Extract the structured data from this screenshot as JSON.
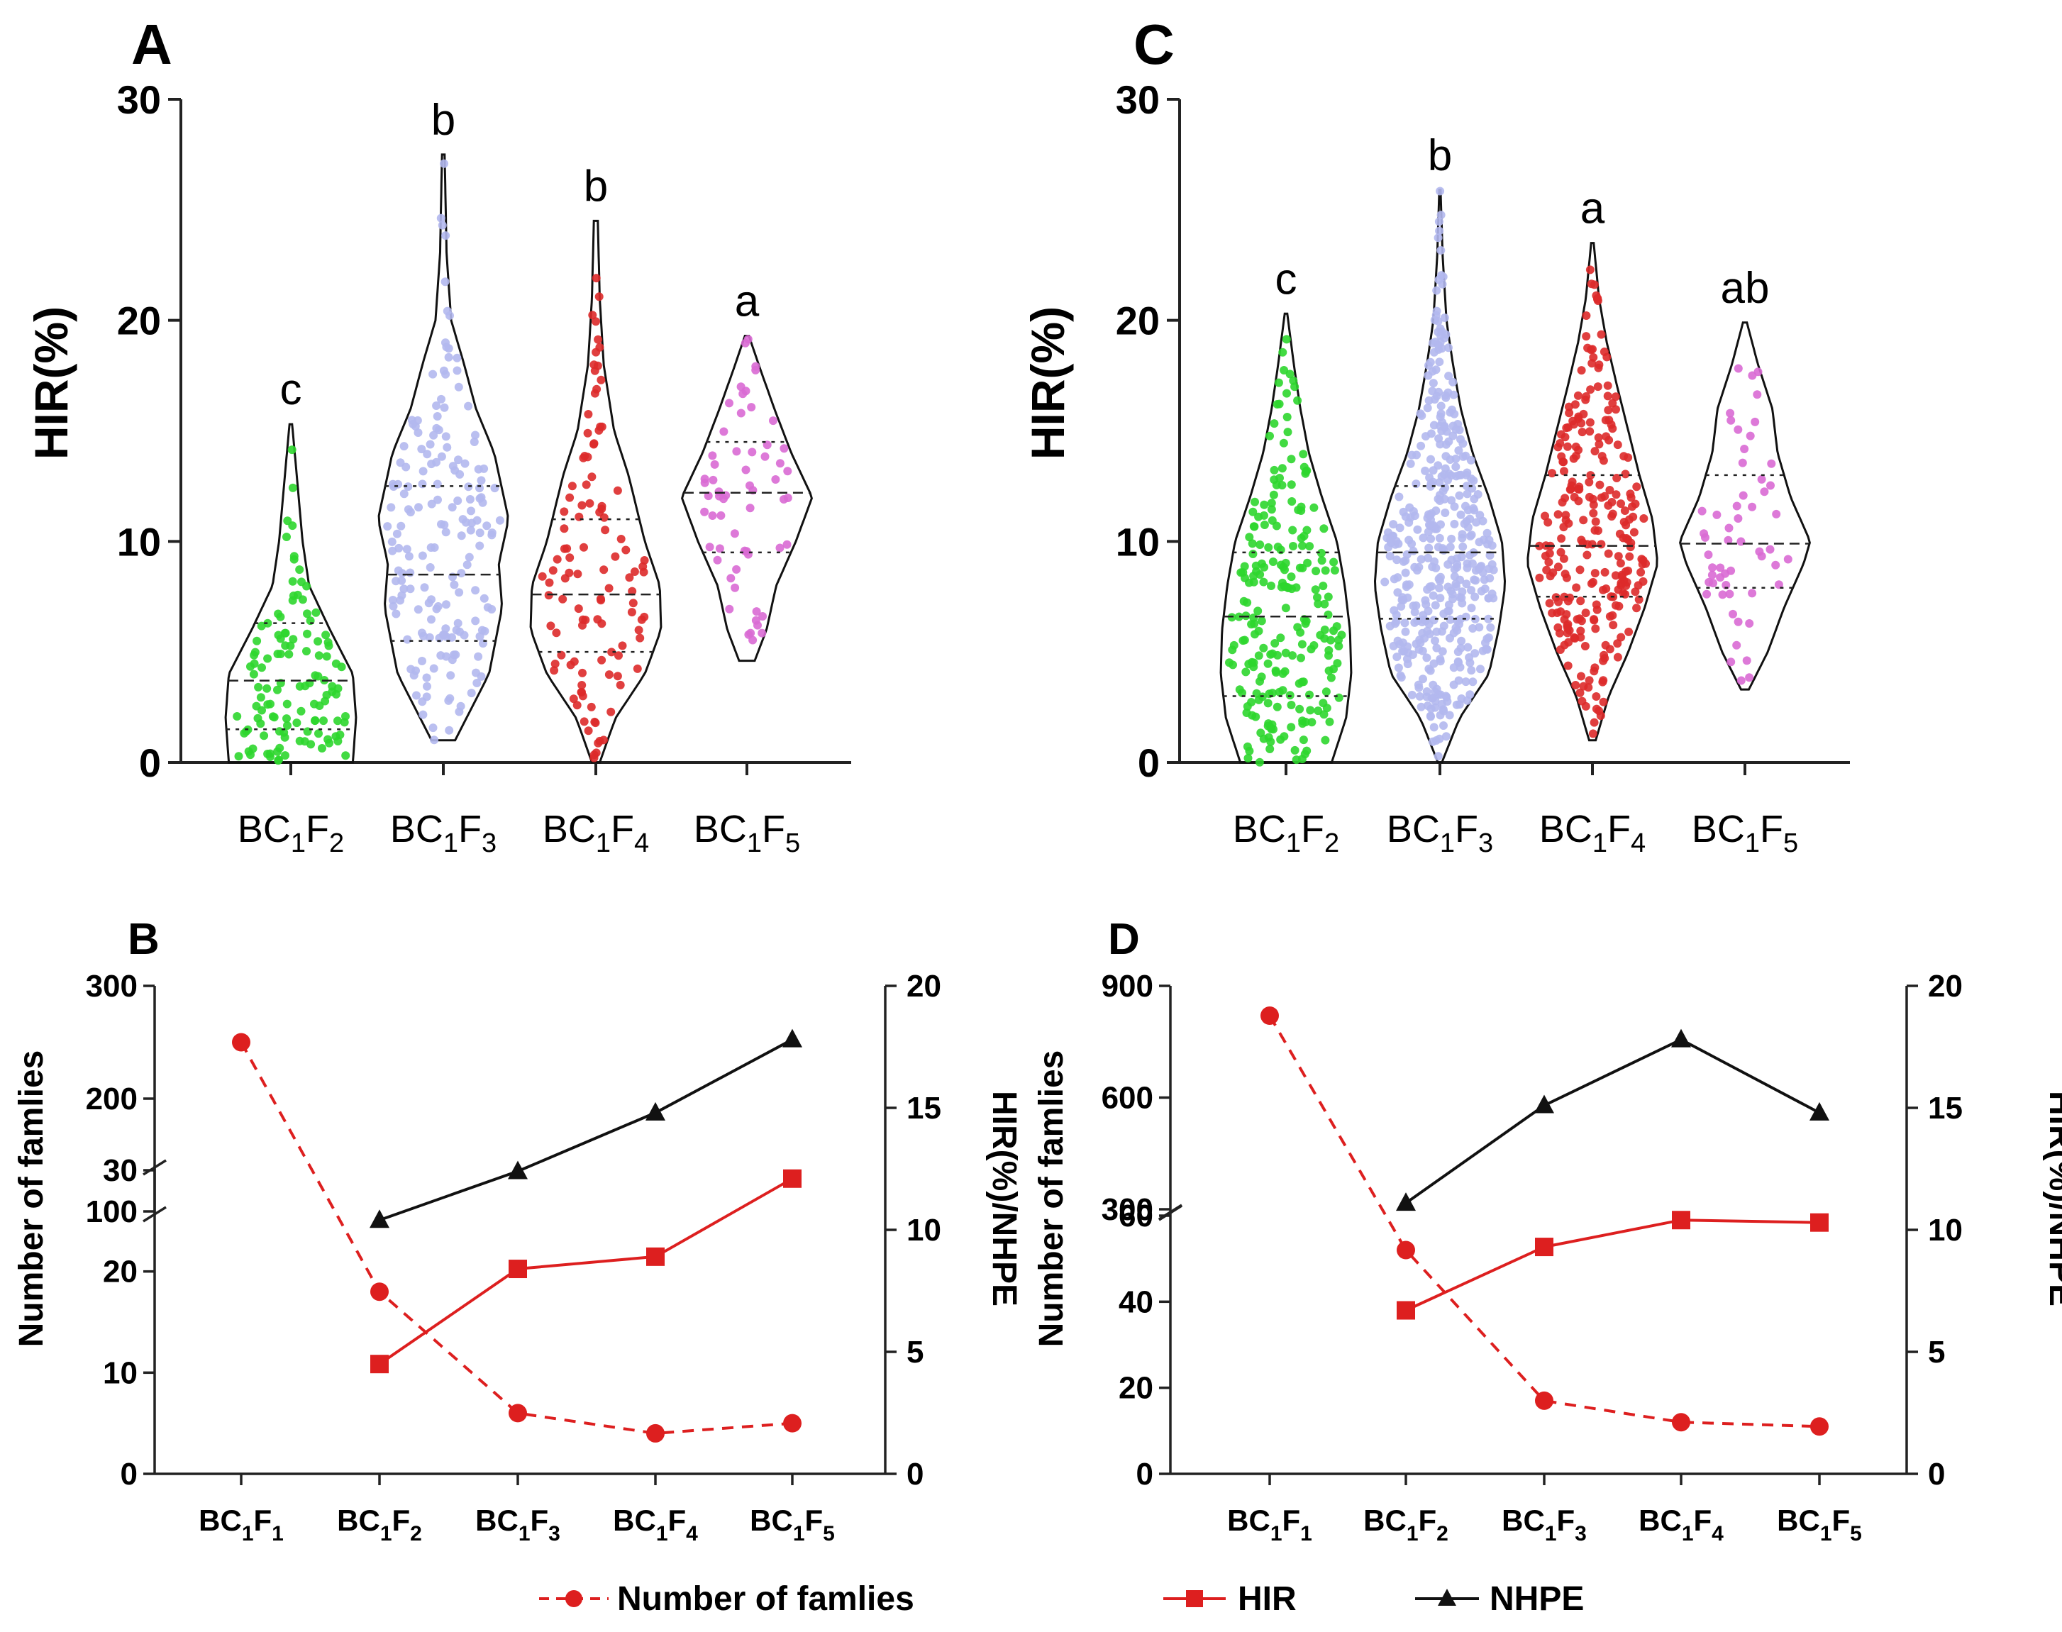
{
  "chart_data": [
    {
      "panel": "A",
      "type": "violin",
      "ylabel": "HIR(%)",
      "ylim": [
        0,
        30
      ],
      "yticks": [
        "0",
        "10",
        "20",
        "30"
      ],
      "categories": [
        {
          "base": "BC",
          "sub1": "1",
          "mid": "F",
          "sub2": "2"
        },
        {
          "base": "BC",
          "sub1": "1",
          "mid": "F",
          "sub2": "3"
        },
        {
          "base": "BC",
          "sub1": "1",
          "mid": "F",
          "sub2": "4"
        },
        {
          "base": "BC",
          "sub1": "1",
          "mid": "F",
          "sub2": "5"
        }
      ],
      "groups": [
        {
          "color": "#2ed62e",
          "min": 0,
          "max": 15.3,
          "median": 3.7,
          "q1": 1.5,
          "q3": 6.3,
          "n": 120,
          "letter": "c",
          "density": [
            [
              0,
              0.95
            ],
            [
              2,
              1.0
            ],
            [
              4,
              0.95
            ],
            [
              6,
              0.6
            ],
            [
              8,
              0.28
            ],
            [
              10,
              0.18
            ],
            [
              12,
              0.12
            ],
            [
              14,
              0.06
            ],
            [
              15.3,
              0.02
            ]
          ]
        },
        {
          "color": "#b3b8ee",
          "min": 1,
          "max": 27.5,
          "median": 8.5,
          "q1": 5.5,
          "q3": 12.5,
          "n": 180,
          "letter": "b",
          "density": [
            [
              1,
              0.18
            ],
            [
              4,
              0.7
            ],
            [
              7,
              0.9
            ],
            [
              9,
              0.85
            ],
            [
              11,
              1.0
            ],
            [
              14,
              0.78
            ],
            [
              16,
              0.5
            ],
            [
              18,
              0.32
            ],
            [
              20,
              0.12
            ],
            [
              23,
              0.05
            ],
            [
              27.5,
              0.02
            ]
          ]
        },
        {
          "color": "#dd2a2a",
          "min": 0,
          "max": 24.5,
          "median": 7.6,
          "q1": 5,
          "q3": 11,
          "n": 110,
          "letter": "b",
          "density": [
            [
              0,
              0.06
            ],
            [
              2,
              0.3
            ],
            [
              4,
              0.75
            ],
            [
              6,
              1.0
            ],
            [
              8,
              0.98
            ],
            [
              10,
              0.75
            ],
            [
              13,
              0.5
            ],
            [
              15,
              0.28
            ],
            [
              18,
              0.12
            ],
            [
              21,
              0.06
            ],
            [
              24.5,
              0.03
            ]
          ]
        },
        {
          "color": "#d96ad4",
          "min": 4.6,
          "max": 19.3,
          "median": 12.2,
          "q1": 9.5,
          "q3": 14.5,
          "n": 60,
          "letter": "a",
          "density": [
            [
              4.6,
              0.12
            ],
            [
              6,
              0.3
            ],
            [
              8,
              0.45
            ],
            [
              10,
              0.75
            ],
            [
              12,
              1.0
            ],
            [
              14,
              0.68
            ],
            [
              16,
              0.42
            ],
            [
              18,
              0.18
            ],
            [
              19.3,
              0.03
            ]
          ]
        }
      ]
    },
    {
      "panel": "C",
      "type": "violin",
      "ylabel": "HIR(%)",
      "ylim": [
        0,
        30
      ],
      "yticks": [
        "0",
        "10",
        "20",
        "30"
      ],
      "categories": [
        {
          "base": "BC",
          "sub1": "1",
          "mid": "F",
          "sub2": "2"
        },
        {
          "base": "BC",
          "sub1": "1",
          "mid": "F",
          "sub2": "3"
        },
        {
          "base": "BC",
          "sub1": "1",
          "mid": "F",
          "sub2": "4"
        },
        {
          "base": "BC",
          "sub1": "1",
          "mid": "F",
          "sub2": "5"
        }
      ],
      "groups": [
        {
          "color": "#2ed62e",
          "min": 0,
          "max": 20.3,
          "median": 6.6,
          "q1": 3,
          "q3": 9.5,
          "n": 230,
          "letter": "c",
          "density": [
            [
              0,
              0.7
            ],
            [
              2,
              0.92
            ],
            [
              4,
              1.0
            ],
            [
              6,
              0.98
            ],
            [
              8,
              0.9
            ],
            [
              10,
              0.78
            ],
            [
              12,
              0.55
            ],
            [
              14,
              0.35
            ],
            [
              16,
              0.22
            ],
            [
              18,
              0.12
            ],
            [
              20.3,
              0.02
            ]
          ]
        },
        {
          "color": "#b3b8ee",
          "min": 0,
          "max": 25.9,
          "median": 9.5,
          "q1": 6.5,
          "q3": 12.5,
          "n": 420,
          "letter": "b",
          "density": [
            [
              0,
              0.03
            ],
            [
              2,
              0.3
            ],
            [
              4,
              0.75
            ],
            [
              6,
              0.9
            ],
            [
              8,
              1.0
            ],
            [
              10,
              0.95
            ],
            [
              12,
              0.75
            ],
            [
              14,
              0.5
            ],
            [
              16,
              0.32
            ],
            [
              18,
              0.2
            ],
            [
              20,
              0.1
            ],
            [
              23,
              0.04
            ],
            [
              25.9,
              0.01
            ]
          ]
        },
        {
          "color": "#dd2a2a",
          "min": 1,
          "max": 23.5,
          "median": 9.8,
          "q1": 7.5,
          "q3": 13,
          "n": 260,
          "letter": "a",
          "density": [
            [
              1,
              0.05
            ],
            [
              3,
              0.25
            ],
            [
              5,
              0.55
            ],
            [
              7,
              0.8
            ],
            [
              9,
              1.0
            ],
            [
              11,
              0.92
            ],
            [
              13,
              0.72
            ],
            [
              15,
              0.55
            ],
            [
              17,
              0.38
            ],
            [
              19,
              0.22
            ],
            [
              21,
              0.1
            ],
            [
              23.5,
              0.02
            ]
          ]
        },
        {
          "color": "#d96ad4",
          "min": 3.3,
          "max": 19.9,
          "median": 9.9,
          "q1": 7.9,
          "q3": 13,
          "n": 55,
          "letter": "ab",
          "density": [
            [
              3.3,
              0.06
            ],
            [
              5,
              0.35
            ],
            [
              7,
              0.6
            ],
            [
              9,
              0.9
            ],
            [
              10,
              1.0
            ],
            [
              12,
              0.7
            ],
            [
              14,
              0.5
            ],
            [
              16,
              0.42
            ],
            [
              18,
              0.2
            ],
            [
              19.9,
              0.03
            ]
          ]
        }
      ]
    },
    {
      "panel": "B",
      "type": "line",
      "x": [
        "BC1F1",
        "BC1F2",
        "BC1F3",
        "BC1F4",
        "BC1F5"
      ],
      "xlabels": [
        {
          "base": "BC",
          "sub1": "1",
          "mid": "F",
          "sub2": "1"
        },
        {
          "base": "BC",
          "sub1": "1",
          "mid": "F",
          "sub2": "2"
        },
        {
          "base": "BC",
          "sub1": "1",
          "mid": "F",
          "sub2": "3"
        },
        {
          "base": "BC",
          "sub1": "1",
          "mid": "F",
          "sub2": "4"
        },
        {
          "base": "BC",
          "sub1": "1",
          "mid": "F",
          "sub2": "5"
        }
      ],
      "ylabel_left": "Number of famlies",
      "ylabel_right": "HIR(%)/NHPE",
      "left_axis": {
        "lower_range": [
          0,
          30
        ],
        "upper_range": [
          100,
          300
        ],
        "lower_ticks": [
          "0",
          "10",
          "20",
          "30"
        ],
        "upper_ticks": [
          "100",
          "200",
          "300"
        ]
      },
      "right_axis": {
        "range": [
          0,
          20
        ],
        "ticks": [
          "0",
          "5",
          "10",
          "15",
          "20"
        ]
      },
      "series": [
        {
          "name": "Number of famlies",
          "axis": "left",
          "style": "dashed",
          "color": "#dd1f1f",
          "marker": "circle",
          "values": [
            250,
            18,
            6,
            4,
            5
          ]
        },
        {
          "name": "HIR",
          "axis": "right",
          "style": "solid",
          "color": "#dd1f1f",
          "marker": "square",
          "values": [
            null,
            4.5,
            8.4,
            8.9,
            12.1
          ]
        },
        {
          "name": "NHPE",
          "axis": "right",
          "style": "solid",
          "color": "#111111",
          "marker": "triangle",
          "values": [
            null,
            10.4,
            12.4,
            14.8,
            17.8
          ]
        }
      ]
    },
    {
      "panel": "D",
      "type": "line",
      "x": [
        "BC1F1",
        "BC1F2",
        "BC1F3",
        "BC1F4",
        "BC1F5"
      ],
      "xlabels": [
        {
          "base": "BC",
          "sub1": "1",
          "mid": "F",
          "sub2": "1"
        },
        {
          "base": "BC",
          "sub1": "1",
          "mid": "F",
          "sub2": "2"
        },
        {
          "base": "BC",
          "sub1": "1",
          "mid": "F",
          "sub2": "3"
        },
        {
          "base": "BC",
          "sub1": "1",
          "mid": "F",
          "sub2": "4"
        },
        {
          "base": "BC",
          "sub1": "1",
          "mid": "F",
          "sub2": "5"
        }
      ],
      "ylabel_left": "Number of famlies",
      "ylabel_right": "HIR(%)/NHPE",
      "left_axis": {
        "lower_range": [
          0,
          60
        ],
        "upper_range": [
          300,
          900
        ],
        "lower_ticks": [
          "0",
          "20",
          "40",
          "60"
        ],
        "upper_ticks": [
          "300",
          "600",
          "900"
        ]
      },
      "right_axis": {
        "range": [
          0,
          20
        ],
        "ticks": [
          "0",
          "5",
          "10",
          "15",
          "20"
        ]
      },
      "series": [
        {
          "name": "Number of famlies",
          "axis": "left",
          "style": "dashed",
          "color": "#dd1f1f",
          "marker": "circle",
          "values": [
            820,
            52,
            17,
            12,
            11
          ]
        },
        {
          "name": "HIR",
          "axis": "right",
          "style": "solid",
          "color": "#dd1f1f",
          "marker": "square",
          "values": [
            null,
            6.7,
            9.3,
            10.4,
            10.3
          ]
        },
        {
          "name": "NHPE",
          "axis": "right",
          "style": "solid",
          "color": "#111111",
          "marker": "triangle",
          "values": [
            null,
            11.1,
            15.1,
            17.8,
            14.8
          ]
        }
      ]
    }
  ],
  "legend": {
    "items": [
      {
        "label": "Number of famlies",
        "marker": "circle",
        "style": "dashed",
        "color": "#dd1f1f"
      },
      {
        "label": "HIR",
        "marker": "square",
        "style": "solid",
        "color": "#dd1f1f"
      },
      {
        "label": "NHPE",
        "marker": "triangle",
        "style": "solid",
        "color": "#111111"
      }
    ]
  }
}
